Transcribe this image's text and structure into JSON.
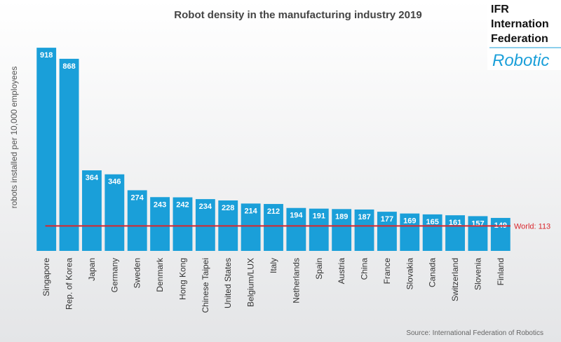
{
  "chart_data": {
    "type": "bar",
    "title": "Robot density in the manufacturing industry 2019",
    "y_label": "robots installed per 10,000 employees",
    "source": "Source: International Federation of Robotics",
    "categories": [
      "Singapore",
      "Rep. of Korea",
      "Japan",
      "Germany",
      "Sweden",
      "Denmark",
      "Hong Kong",
      "Chinese Taipei",
      "United States",
      "Belgium/LUX",
      "Italy",
      "Netherlands",
      "Spain",
      "Austria",
      "China",
      "France",
      "Slovakia",
      "Canada",
      "Switzerland",
      "Slovenia",
      "Finland"
    ],
    "values": [
      918,
      868,
      364,
      346,
      274,
      243,
      242,
      234,
      228,
      214,
      212,
      194,
      191,
      189,
      187,
      177,
      169,
      165,
      161,
      157,
      149
    ],
    "color": "#1a9fd9",
    "ylim": [
      0,
      950
    ],
    "reference_line": {
      "label": "World: 113",
      "value": 113,
      "color": "#d9262c"
    },
    "logo": {
      "lines": [
        "IFR",
        "Internation",
        "Federation"
      ],
      "script": "Robotic"
    }
  }
}
